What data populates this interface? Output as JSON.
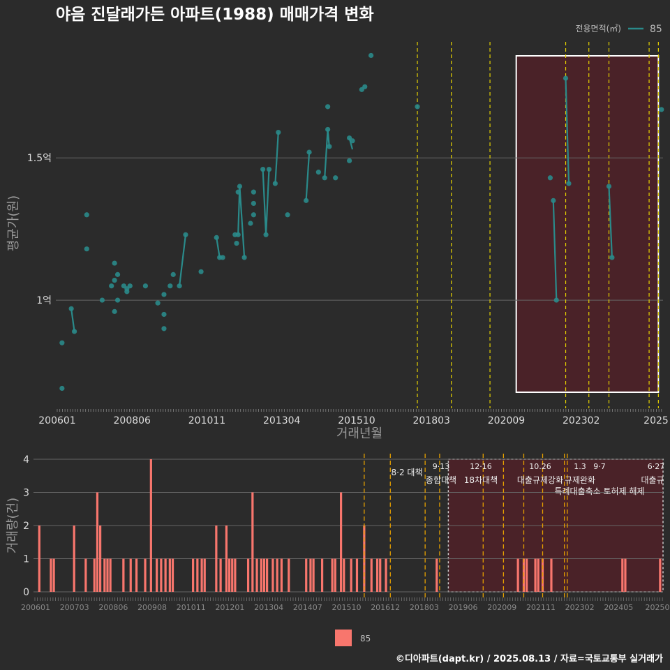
{
  "chart_data": [
    {
      "type": "line",
      "title": "야음 진달래가든 아파트(1988) 매매가격 변화",
      "xlabel": "거래년월",
      "ylabel": "평균가(원)",
      "x_tick_labels": [
        "200601",
        "200806",
        "201011",
        "201304",
        "201510",
        "201803",
        "202009",
        "202302",
        "2025"
      ],
      "y_tick_labels": [
        "1억",
        "1.5억"
      ],
      "y_ticks": [
        1.0,
        1.5
      ],
      "ylim": [
        0.62,
        1.92
      ],
      "xlim": [
        2005.9,
        2025.55
      ],
      "legend": {
        "title": "전용면적(㎡)",
        "label": "85",
        "position": "top-right"
      },
      "grid": true,
      "series": [
        {
          "name": "85",
          "color": "#2a8a8a",
          "lines": [
            [
              [
                2006.4,
                0.97
              ],
              [
                2006.5,
                0.89
              ]
            ],
            [
              [
                2009.9,
                1.05
              ],
              [
                2010.1,
                1.23
              ]
            ],
            [
              [
                2011.1,
                1.22
              ],
              [
                2011.2,
                1.15
              ],
              [
                2011.3,
                1.15
              ]
            ],
            [
              [
                2011.8,
                1.23
              ],
              [
                2011.85,
                1.4
              ],
              [
                2012.0,
                1.15
              ]
            ],
            [
              [
                2012.6,
                1.46
              ],
              [
                2012.7,
                1.23
              ],
              [
                2012.8,
                1.46
              ]
            ],
            [
              [
                2013.0,
                1.41
              ],
              [
                2013.1,
                1.59
              ]
            ],
            [
              [
                2014.0,
                1.35
              ],
              [
                2014.1,
                1.52
              ]
            ],
            [
              [
                2014.6,
                1.43
              ],
              [
                2014.7,
                1.6
              ],
              [
                2014.75,
                1.54
              ]
            ],
            [
              [
                2015.4,
                1.57
              ],
              [
                2015.5,
                1.53
              ]
            ],
            [
              [
                2022.0,
                1.35
              ],
              [
                2022.1,
                1.0
              ]
            ],
            [
              [
                2022.4,
                1.78
              ],
              [
                2022.5,
                1.41
              ]
            ],
            [
              [
                2023.8,
                1.4
              ],
              [
                2023.9,
                1.15
              ]
            ]
          ],
          "points": [
            [
              2006.1,
              0.85
            ],
            [
              2006.1,
              0.69
            ],
            [
              2006.4,
              0.97
            ],
            [
              2006.5,
              0.89
            ],
            [
              2006.9,
              1.3
            ],
            [
              2006.9,
              1.18
            ],
            [
              2007.4,
              1.0
            ],
            [
              2007.7,
              1.05
            ],
            [
              2007.8,
              1.13
            ],
            [
              2007.8,
              1.07
            ],
            [
              2007.8,
              0.96
            ],
            [
              2007.9,
              1.0
            ],
            [
              2007.9,
              1.09
            ],
            [
              2008.1,
              1.05
            ],
            [
              2008.2,
              1.03
            ],
            [
              2008.2,
              1.04
            ],
            [
              2008.3,
              1.05
            ],
            [
              2008.8,
              1.05
            ],
            [
              2009.2,
              0.99
            ],
            [
              2009.4,
              1.02
            ],
            [
              2009.4,
              0.95
            ],
            [
              2009.4,
              0.9
            ],
            [
              2009.6,
              1.05
            ],
            [
              2009.7,
              1.09
            ],
            [
              2009.9,
              1.05
            ],
            [
              2010.1,
              1.23
            ],
            [
              2010.6,
              1.1
            ],
            [
              2011.1,
              1.22
            ],
            [
              2011.2,
              1.15
            ],
            [
              2011.3,
              1.15
            ],
            [
              2011.8,
              1.23
            ],
            [
              2011.8,
              1.38
            ],
            [
              2011.7,
              1.23
            ],
            [
              2011.75,
              1.2
            ],
            [
              2011.85,
              1.4
            ],
            [
              2012.0,
              1.15
            ],
            [
              2012.2,
              1.27
            ],
            [
              2012.3,
              1.38
            ],
            [
              2012.3,
              1.34
            ],
            [
              2012.3,
              1.3
            ],
            [
              2012.6,
              1.46
            ],
            [
              2012.7,
              1.23
            ],
            [
              2012.8,
              1.46
            ],
            [
              2013.0,
              1.41
            ],
            [
              2013.1,
              1.59
            ],
            [
              2013.4,
              1.3
            ],
            [
              2014.0,
              1.35
            ],
            [
              2014.1,
              1.52
            ],
            [
              2014.4,
              1.45
            ],
            [
              2014.6,
              1.43
            ],
            [
              2014.7,
              1.6
            ],
            [
              2014.7,
              1.68
            ],
            [
              2014.75,
              1.54
            ],
            [
              2014.95,
              1.43
            ],
            [
              2015.4,
              1.57
            ],
            [
              2015.4,
              1.49
            ],
            [
              2015.5,
              1.56
            ],
            [
              2015.8,
              1.74
            ],
            [
              2015.9,
              1.75
            ],
            [
              2016.1,
              1.86
            ],
            [
              2017.6,
              1.68
            ],
            [
              2021.9,
              1.43
            ],
            [
              2022.0,
              1.35
            ],
            [
              2022.1,
              1.0
            ],
            [
              2022.4,
              1.78
            ],
            [
              2022.5,
              1.41
            ],
            [
              2023.8,
              1.4
            ],
            [
              2023.9,
              1.15
            ],
            [
              2025.5,
              1.67
            ]
          ]
        }
      ],
      "policy_lines": [
        2017.6,
        2018.7,
        2019.95,
        2022.4,
        2023.15,
        2023.8,
        2025.1,
        2025.4
      ],
      "highlight_range": [
        2020.8,
        2025.4
      ]
    },
    {
      "type": "bar",
      "xlabel": "",
      "ylabel": "거래량(건)",
      "x_tick_labels": [
        "200601",
        "200703",
        "200806",
        "200908",
        "201011",
        "201201",
        "201304",
        "201407",
        "201510",
        "201612",
        "201803",
        "201906",
        "202009",
        "202111",
        "202302",
        "202405",
        "20250"
      ],
      "y_tick_labels": [
        "0",
        "1",
        "2",
        "3",
        "4"
      ],
      "ylim": [
        0,
        4
      ],
      "legend": {
        "label": "85",
        "color": "#f8766d",
        "position": "bottom"
      },
      "bars": [
        [
          2006.1,
          2
        ],
        [
          2006.5,
          1
        ],
        [
          2006.6,
          1
        ],
        [
          2007.3,
          2
        ],
        [
          2007.7,
          1
        ],
        [
          2008.0,
          1
        ],
        [
          2008.1,
          3
        ],
        [
          2008.2,
          2
        ],
        [
          2008.35,
          1
        ],
        [
          2008.45,
          1
        ],
        [
          2008.55,
          1
        ],
        [
          2009.0,
          1
        ],
        [
          2009.25,
          1
        ],
        [
          2009.45,
          1
        ],
        [
          2009.75,
          1
        ],
        [
          2009.95,
          4
        ],
        [
          2010.15,
          1
        ],
        [
          2010.3,
          1
        ],
        [
          2010.45,
          1
        ],
        [
          2010.6,
          1
        ],
        [
          2010.7,
          1
        ],
        [
          2011.4,
          1
        ],
        [
          2011.55,
          1
        ],
        [
          2011.7,
          1
        ],
        [
          2011.8,
          1
        ],
        [
          2012.2,
          2
        ],
        [
          2012.35,
          1
        ],
        [
          2012.55,
          2
        ],
        [
          2012.65,
          1
        ],
        [
          2012.75,
          1
        ],
        [
          2012.85,
          1
        ],
        [
          2013.3,
          1
        ],
        [
          2013.45,
          3
        ],
        [
          2013.6,
          1
        ],
        [
          2013.75,
          1
        ],
        [
          2013.85,
          1
        ],
        [
          2013.95,
          1
        ],
        [
          2014.15,
          1
        ],
        [
          2014.3,
          1
        ],
        [
          2014.45,
          1
        ],
        [
          2014.7,
          1
        ],
        [
          2015.3,
          1
        ],
        [
          2015.45,
          1
        ],
        [
          2015.55,
          1
        ],
        [
          2015.85,
          1
        ],
        [
          2016.2,
          1
        ],
        [
          2016.3,
          1
        ],
        [
          2016.5,
          3
        ],
        [
          2016.6,
          1
        ],
        [
          2016.85,
          1
        ],
        [
          2017.05,
          1
        ],
        [
          2017.3,
          2
        ],
        [
          2017.55,
          1
        ],
        [
          2017.75,
          1
        ],
        [
          2017.85,
          1
        ],
        [
          2018.05,
          1
        ],
        [
          2019.8,
          1
        ],
        [
          2022.6,
          1
        ],
        [
          2022.8,
          1
        ],
        [
          2022.9,
          1
        ],
        [
          2023.2,
          1
        ],
        [
          2023.3,
          1
        ],
        [
          2023.45,
          1
        ],
        [
          2023.75,
          1
        ],
        [
          2026.2,
          1
        ],
        [
          2026.3,
          1
        ],
        [
          2027.5,
          1
        ]
      ],
      "policy_lines": [
        2017.3,
        2018.2,
        2019.4,
        2019.9,
        2021.4,
        2022.1,
        2022.8,
        2023.45,
        2024.2,
        2024.3
      ],
      "annotations": [
        {
          "date": "8·2",
          "label": "대책"
        },
        {
          "date": "9·13",
          "label": "종합대책"
        },
        {
          "date": "12·16",
          "label": "18차대책"
        },
        {
          "date": "10.26",
          "label": "대출규제강화"
        },
        {
          "date": "1.3",
          "label": "규제완화"
        },
        {
          "date": "9·7",
          "label": "특례대출축소 토허제 해제"
        },
        {
          "date": "6·27",
          "label": "대출규"
        }
      ]
    }
  ],
  "footer": "©디아파트(dapt.kr) / 2025.08.13 / 자료=국토교통부 실거래가"
}
